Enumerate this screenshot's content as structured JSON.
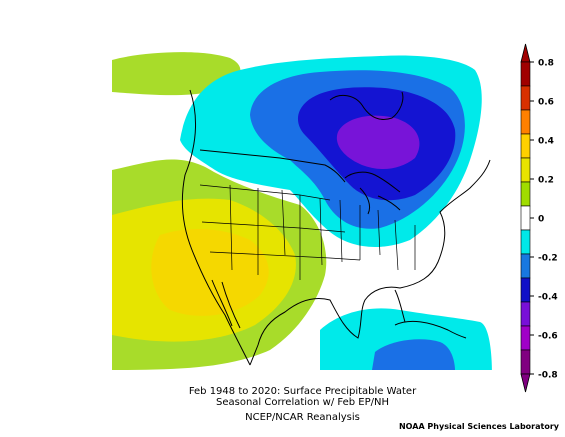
{
  "figure": {
    "title_line1": "Feb 1948 to 2020: Surface Precipitable Water",
    "title_line2": "Seasonal Correlation w/ Feb EP/NH",
    "subtitle": "NCEP/NCAR Reanalysis",
    "credit": "NOAA Physical Sciences Laboratory"
  },
  "colorbar": {
    "labels": [
      "0.8",
      "0.6",
      "0.4",
      "0.2",
      "0",
      "-0.2",
      "-0.4",
      "-0.6",
      "-0.8"
    ],
    "colors": [
      "#a00000",
      "#d83000",
      "#ff8000",
      "#ffd000",
      "#e8e400",
      "#a0dc00",
      "#ffffff",
      "#00e8e8",
      "#1878e0",
      "#1010c8",
      "#7810d8",
      "#a000c8",
      "#800080"
    ]
  },
  "palette": {
    "ocean_white": "#ffffff",
    "pos_02": "#a8dc2a",
    "pos_04": "#e0e000",
    "pos_045": "#f5d800",
    "neg_02": "#00eaea",
    "neg_04": "#1a70e6",
    "neg_06": "#1414d2",
    "neg_08": "#7814d8",
    "outline": "#000000"
  }
}
